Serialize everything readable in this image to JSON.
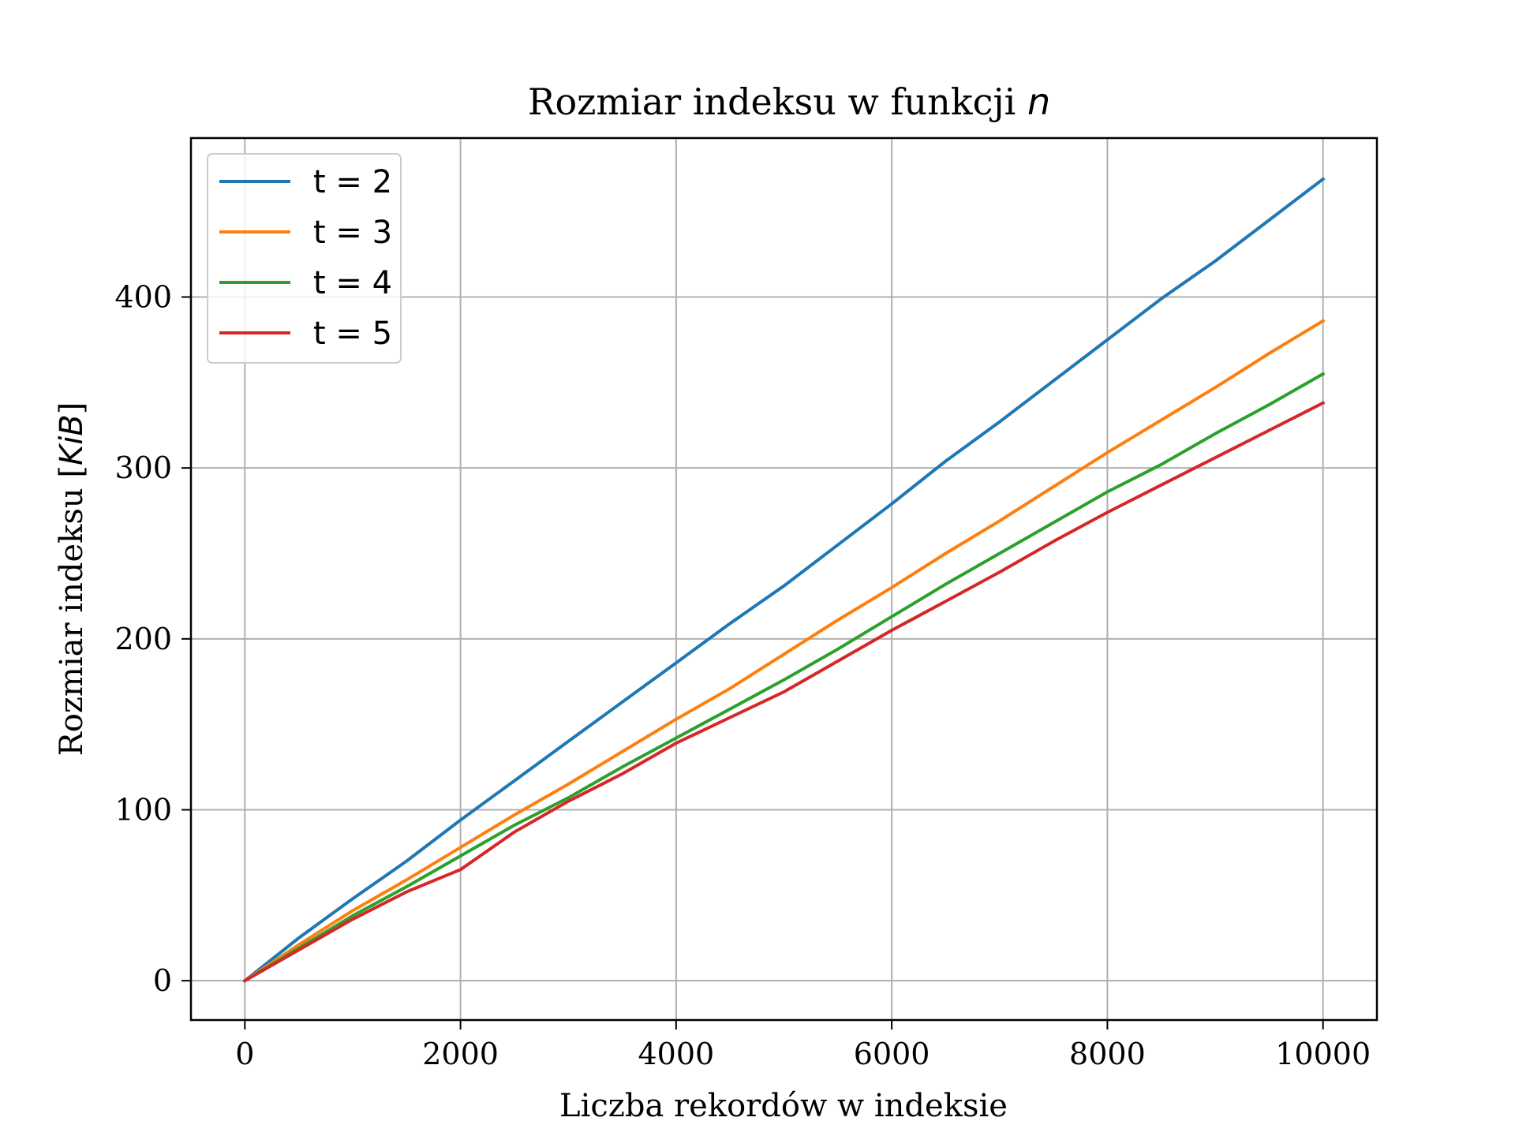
{
  "chart_data": {
    "type": "line",
    "title": "Rozmiar indeksu w funkcji ",
    "title_math": "n",
    "xlabel": "Liczba rekordów w indeksie",
    "ylabel": "Rozmiar indeksu [",
    "ylabel_math": "KiB",
    "ylabel_end": "]",
    "xlim": [
      -500,
      10500
    ],
    "ylim": [
      -23,
      493
    ],
    "xticks": [
      0,
      2000,
      4000,
      6000,
      8000,
      10000
    ],
    "xtick_labels": [
      "0",
      "2000",
      "4000",
      "6000",
      "8000",
      "10000"
    ],
    "yticks": [
      0,
      100,
      200,
      300,
      400
    ],
    "ytick_labels": [
      "0",
      "100",
      "200",
      "300",
      "400"
    ],
    "grid": true,
    "legend_position": "upper-left",
    "series": [
      {
        "name": "t = 2",
        "color": "#1f77b4",
        "x": [
          0,
          500,
          1000,
          1500,
          2000,
          2500,
          3000,
          3500,
          4000,
          4500,
          5000,
          5500,
          6000,
          6500,
          7000,
          7500,
          8000,
          8500,
          9000,
          9500,
          10000
        ],
        "y": [
          0,
          25,
          48,
          70,
          94,
          117,
          140,
          163,
          186,
          209,
          231,
          255,
          279,
          304,
          327,
          351,
          375,
          399,
          421,
          445,
          469
        ]
      },
      {
        "name": "t = 3",
        "color": "#ff7f0e",
        "x": [
          0,
          500,
          1000,
          1500,
          2000,
          2500,
          3000,
          3500,
          4000,
          4500,
          5000,
          5500,
          6000,
          6500,
          7000,
          7500,
          8000,
          8500,
          9000,
          9500,
          10000
        ],
        "y": [
          0,
          21,
          41,
          59,
          78,
          97,
          115,
          134,
          153,
          171,
          191,
          211,
          230,
          250,
          269,
          289,
          309,
          328,
          347,
          367,
          386
        ]
      },
      {
        "name": "t = 4",
        "color": "#2ca02c",
        "x": [
          0,
          500,
          1000,
          1500,
          2000,
          2500,
          3000,
          3500,
          4000,
          4500,
          5000,
          5500,
          6000,
          6500,
          7000,
          7500,
          8000,
          8500,
          9000,
          9500,
          10000
        ],
        "y": [
          0,
          19,
          38,
          55,
          73,
          91,
          107,
          125,
          142,
          159,
          176,
          194,
          213,
          232,
          250,
          268,
          286,
          302,
          320,
          337,
          355
        ]
      },
      {
        "name": "t = 5",
        "color": "#d62728",
        "x": [
          0,
          500,
          1000,
          1500,
          2000,
          2500,
          3000,
          3500,
          4000,
          4500,
          5000,
          5500,
          6000,
          6500,
          7000,
          7500,
          8000,
          8500,
          9000,
          9500,
          10000
        ],
        "y": [
          0,
          18,
          36,
          52,
          65,
          87,
          105,
          121,
          139,
          154,
          169,
          187,
          205,
          222,
          239,
          257,
          274,
          290,
          306,
          322,
          338
        ]
      }
    ]
  }
}
